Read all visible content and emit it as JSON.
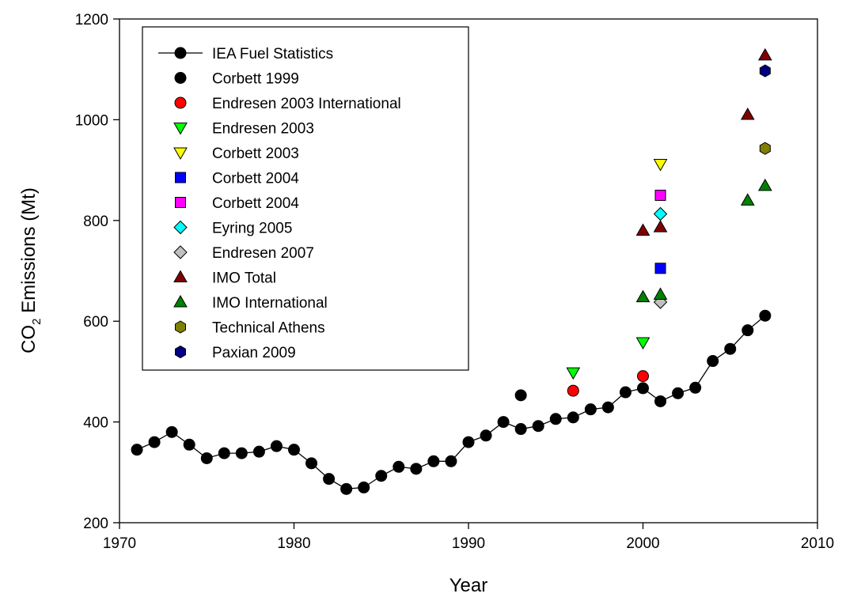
{
  "chart_data": {
    "type": "scatter",
    "title": "",
    "xlabel": "Year",
    "ylabel": {
      "prefix": "CO",
      "subscript": "2",
      "suffix": " Emissions (Mt)"
    },
    "xlim": [
      1970,
      2010
    ],
    "ylim": [
      200,
      1200
    ],
    "xticks": [
      1970,
      1980,
      1990,
      2000,
      2010
    ],
    "yticks": [
      200,
      400,
      600,
      800,
      1000,
      1200
    ],
    "grid": false,
    "legend_position": "top-left",
    "series": [
      {
        "name": "IEA Fuel Statistics",
        "marker": "circle",
        "line": true,
        "color": "#000000",
        "x": [
          1971,
          1972,
          1973,
          1974,
          1975,
          1976,
          1977,
          1978,
          1979,
          1980,
          1981,
          1982,
          1983,
          1984,
          1985,
          1986,
          1987,
          1988,
          1989,
          1990,
          1991,
          1992,
          1993,
          1994,
          1995,
          1996,
          1997,
          1998,
          1999,
          2000,
          2001,
          2002,
          2003,
          2004,
          2005,
          2006,
          2007
        ],
        "y": [
          345,
          360,
          380,
          355,
          328,
          338,
          338,
          341,
          352,
          345,
          318,
          287,
          267,
          270,
          293,
          311,
          307,
          322,
          322,
          360,
          373,
          400,
          386,
          392,
          406,
          409,
          425,
          429,
          459,
          467,
          441,
          457,
          468,
          521,
          545,
          582,
          611
        ]
      },
      {
        "name": "Corbett 1999",
        "marker": "circle",
        "line": false,
        "color": "#000000",
        "x": [
          1993
        ],
        "y": [
          453
        ]
      },
      {
        "name": "Endresen 2003 International",
        "marker": "circle",
        "line": false,
        "color": "#ff0000",
        "x": [
          1996,
          2000
        ],
        "y": [
          462,
          491
        ]
      },
      {
        "name": "Endresen 2003",
        "marker": "triangle-down",
        "line": false,
        "color": "#00ff00",
        "x": [
          1996,
          2000
        ],
        "y": [
          498,
          558
        ]
      },
      {
        "name": "Corbett 2003",
        "marker": "triangle-down",
        "line": false,
        "color": "#ffff00",
        "x": [
          2001
        ],
        "y": [
          912
        ]
      },
      {
        "name": "Corbett 2004",
        "marker": "square",
        "line": false,
        "color": "#0000ff",
        "x": [
          2001
        ],
        "y": [
          705
        ]
      },
      {
        "name": "Corbett 2004",
        "marker": "square",
        "line": false,
        "color": "#ff00ff",
        "x": [
          2001
        ],
        "y": [
          850
        ]
      },
      {
        "name": "Eyring 2005",
        "marker": "diamond",
        "line": false,
        "color": "#00ffff",
        "x": [
          2001
        ],
        "y": [
          813
        ]
      },
      {
        "name": "Endresen 2007",
        "marker": "diamond",
        "line": false,
        "color": "#c0c0c0",
        "x": [
          2001
        ],
        "y": [
          638
        ]
      },
      {
        "name": "IMO Total",
        "marker": "triangle-up",
        "line": false,
        "color": "#800000",
        "x": [
          2000,
          2001,
          2006,
          2007
        ],
        "y": [
          780,
          787,
          1010,
          1128
        ]
      },
      {
        "name": "IMO International",
        "marker": "triangle-up",
        "line": false,
        "color": "#008000",
        "x": [
          2000,
          2001,
          2006,
          2007
        ],
        "y": [
          648,
          653,
          840,
          869
        ]
      },
      {
        "name": "Technical Athens",
        "marker": "hexagon",
        "line": false,
        "color": "#808000",
        "x": [
          2007
        ],
        "y": [
          943
        ]
      },
      {
        "name": "Paxian 2009",
        "marker": "hexagon",
        "line": false,
        "color": "#000080",
        "x": [
          2007
        ],
        "y": [
          1097
        ]
      }
    ]
  }
}
